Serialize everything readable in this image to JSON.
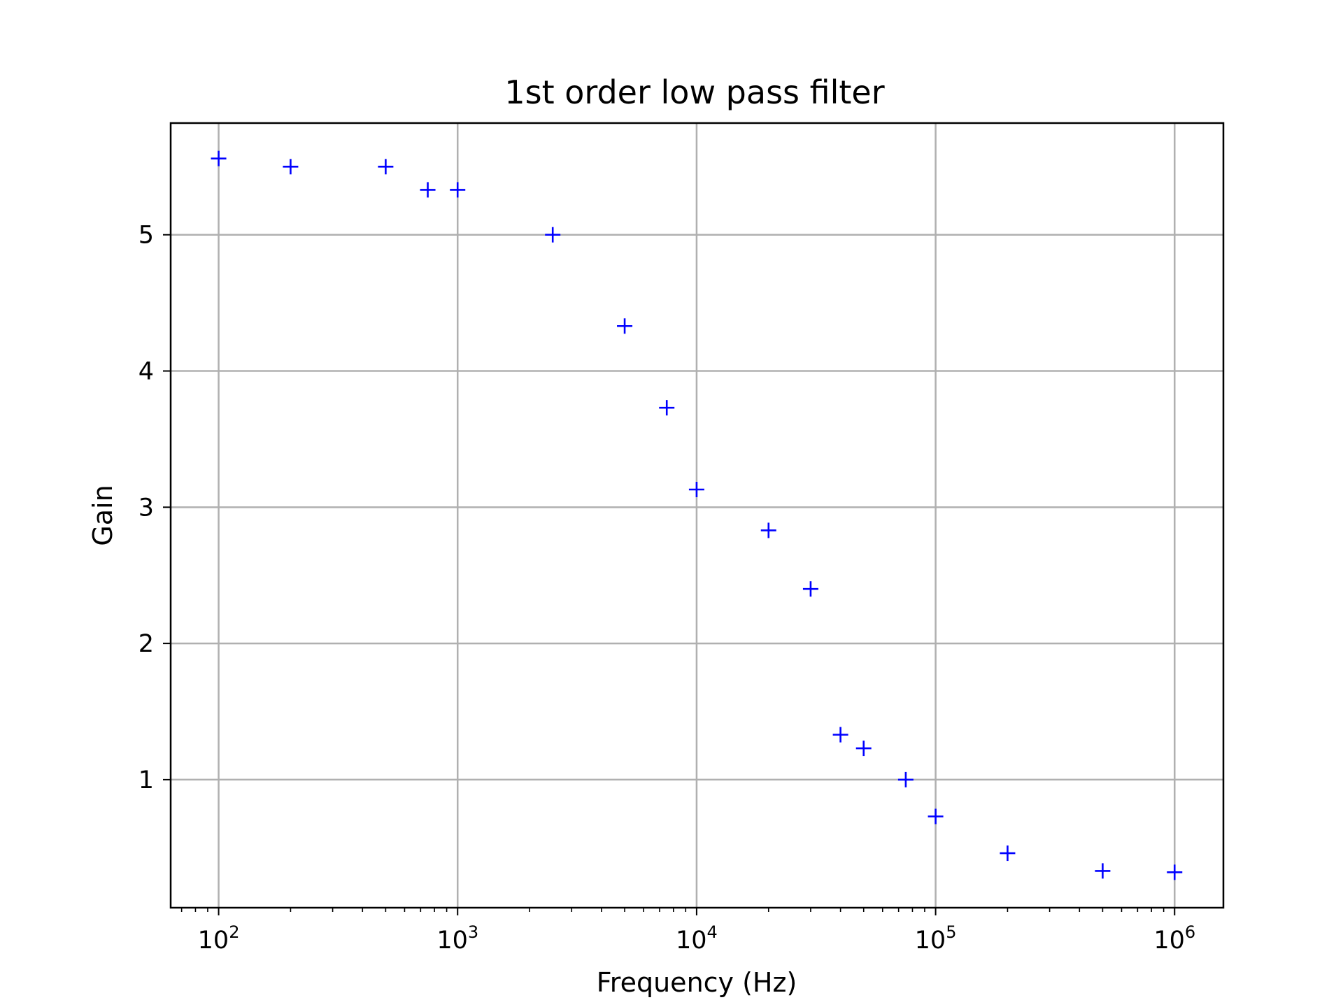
{
  "chart_data": {
    "type": "scatter",
    "title": "1st order low pass filter",
    "xlabel": "Frequency (Hz)",
    "ylabel": "Gain",
    "xscale": "log",
    "xlim": [
      63,
      1600000
    ],
    "ylim": [
      0.06,
      5.82
    ],
    "grid": true,
    "marker": "+",
    "color": "#0000ff",
    "x_ticks": [
      {
        "base": "10",
        "exp": "2",
        "value": 100
      },
      {
        "base": "10",
        "exp": "3",
        "value": 1000
      },
      {
        "base": "10",
        "exp": "4",
        "value": 10000
      },
      {
        "base": "10",
        "exp": "5",
        "value": 100000
      },
      {
        "base": "10",
        "exp": "6",
        "value": 1000000
      }
    ],
    "y_ticks": [
      {
        "label": "1",
        "value": 1
      },
      {
        "label": "2",
        "value": 2
      },
      {
        "label": "3",
        "value": 3
      },
      {
        "label": "4",
        "value": 4
      },
      {
        "label": "5",
        "value": 5
      }
    ],
    "points": [
      {
        "x": 100,
        "y": 5.56
      },
      {
        "x": 200,
        "y": 5.5
      },
      {
        "x": 500,
        "y": 5.5
      },
      {
        "x": 750,
        "y": 5.33
      },
      {
        "x": 1000,
        "y": 5.33
      },
      {
        "x": 2500,
        "y": 5.0
      },
      {
        "x": 5000,
        "y": 4.33
      },
      {
        "x": 7500,
        "y": 3.73
      },
      {
        "x": 10000,
        "y": 3.13
      },
      {
        "x": 20000,
        "y": 2.83
      },
      {
        "x": 30000,
        "y": 2.4
      },
      {
        "x": 40000,
        "y": 1.33
      },
      {
        "x": 50000,
        "y": 1.23
      },
      {
        "x": 75000,
        "y": 1.0
      },
      {
        "x": 100000,
        "y": 0.73
      },
      {
        "x": 200000,
        "y": 0.46
      },
      {
        "x": 500000,
        "y": 0.33
      },
      {
        "x": 1000000,
        "y": 0.32
      }
    ]
  }
}
